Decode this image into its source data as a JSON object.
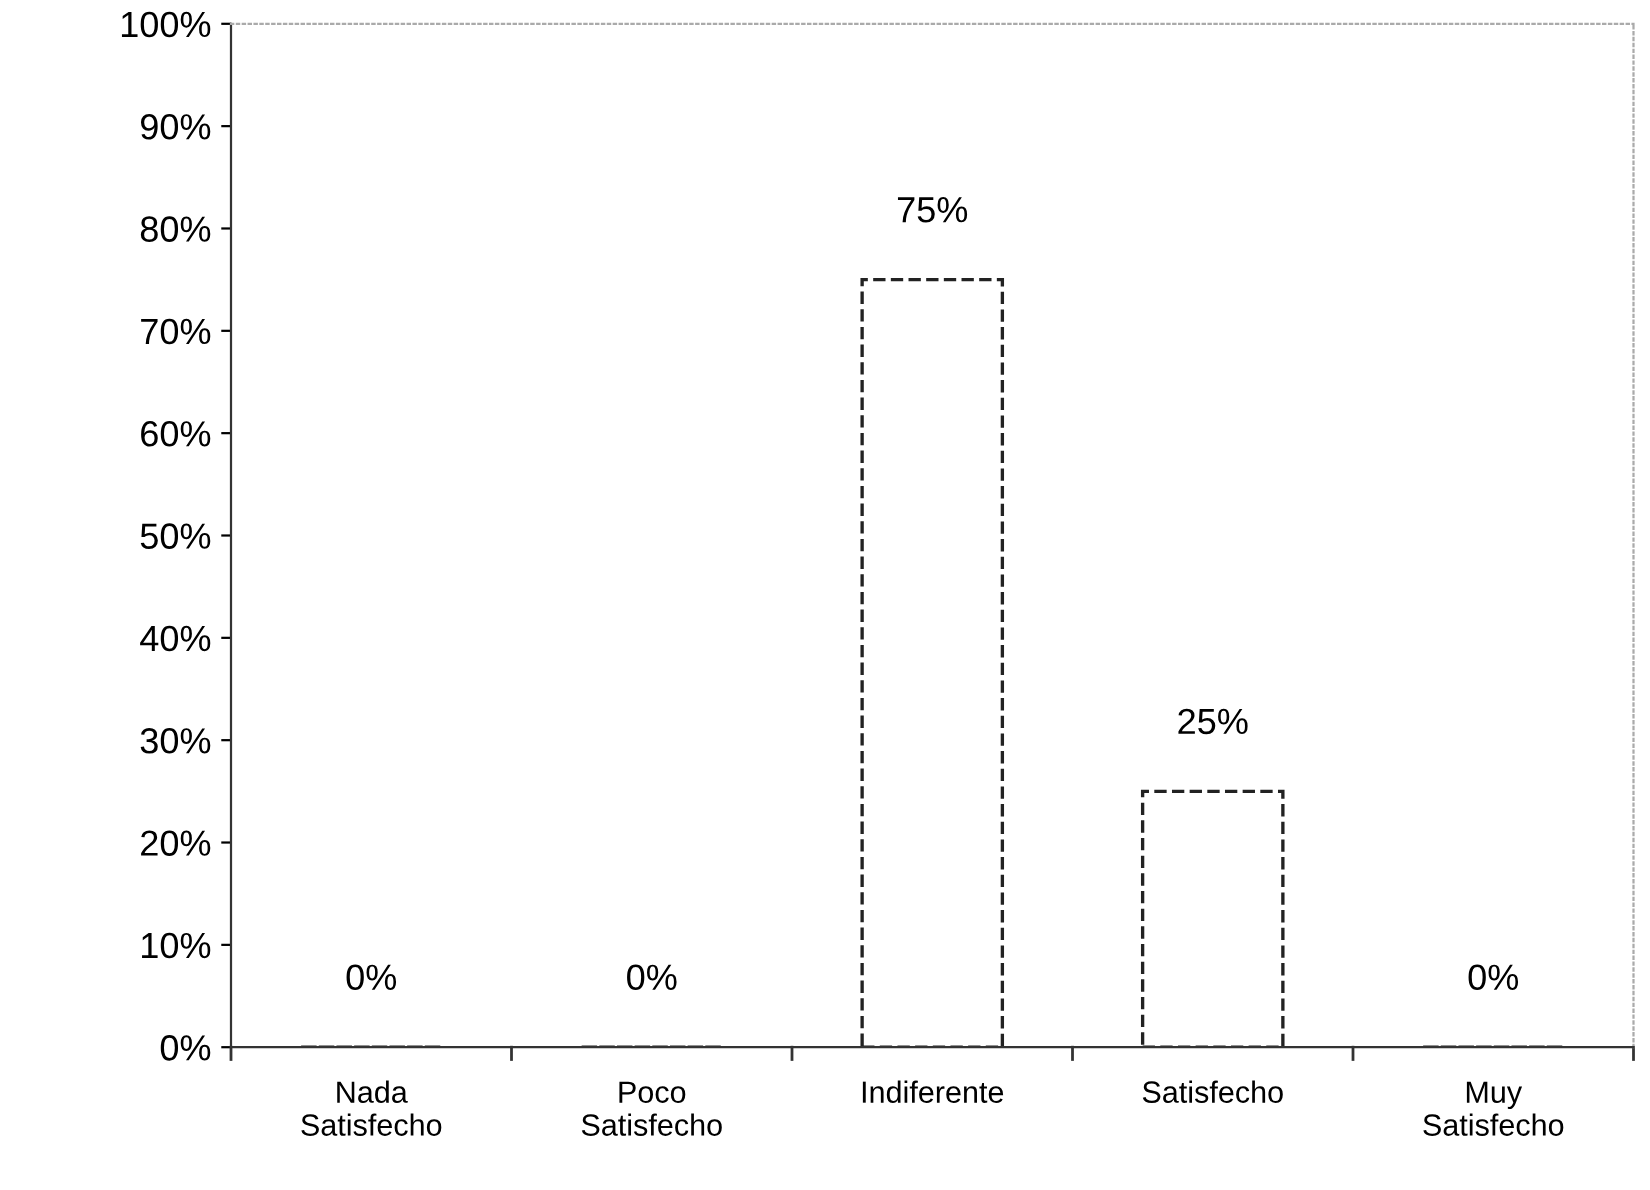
{
  "chart_data": {
    "type": "bar",
    "categories": [
      "Nada\nSatisfecho",
      "Poco\nSatisfecho",
      "Indiferente",
      "Satisfecho",
      "Muy\nSatisfecho"
    ],
    "values": [
      0,
      0,
      75,
      25,
      0
    ],
    "value_labels": [
      "0%",
      "0%",
      "75%",
      "25%",
      "0%"
    ],
    "color": "#222222",
    "ylim": [
      0,
      100
    ],
    "yticks": [
      {
        "value": 0,
        "label": "0%"
      },
      {
        "value": 10,
        "label": "10%"
      },
      {
        "value": 20,
        "label": "20%"
      },
      {
        "value": 30,
        "label": "30%"
      },
      {
        "value": 40,
        "label": "40%"
      },
      {
        "value": 50,
        "label": "50%"
      },
      {
        "value": 60,
        "label": "60%"
      },
      {
        "value": 70,
        "label": "70%"
      },
      {
        "value": 80,
        "label": "80%"
      },
      {
        "value": 90,
        "label": "90%"
      },
      {
        "value": 100,
        "label": "100%"
      }
    ],
    "grid": false,
    "legend": false
  }
}
